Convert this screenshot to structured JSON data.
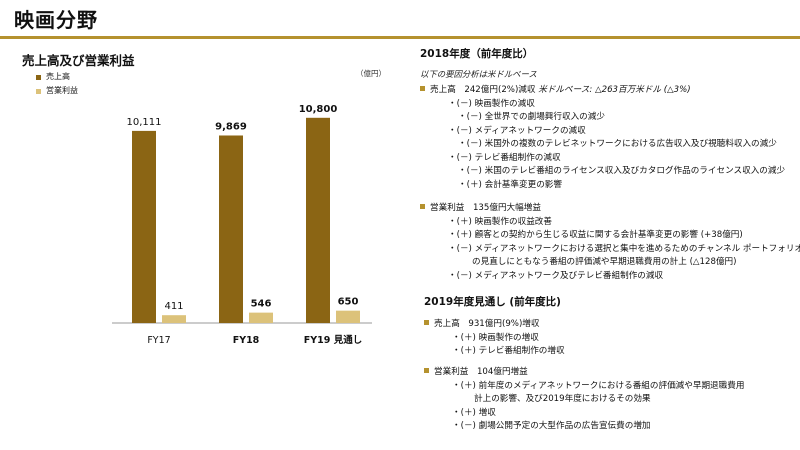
{
  "page": {
    "title": "映画分野",
    "accent_color": "#b5922e"
  },
  "chart_panel": {
    "title": "売上高及び営業利益",
    "unit": "（億円）"
  },
  "chart_data": {
    "type": "bar",
    "categories": [
      "FY17",
      "FY18",
      "FY19 見通し"
    ],
    "series": [
      {
        "name": "売上高",
        "values": [
          10111,
          9869,
          10800
        ],
        "labels": [
          "10,111",
          "9,869",
          "10,800"
        ],
        "color": "#8b6514"
      },
      {
        "name": "営業利益",
        "values": [
          411,
          546,
          650
        ],
        "labels": [
          "411",
          "546",
          "650"
        ],
        "color": "#dcc27a"
      }
    ],
    "ylim": [
      0,
      12000
    ],
    "grid": false,
    "legend": "top-left"
  },
  "right": {
    "fy18": {
      "title": "2018年度（前年度比）",
      "note": "以下の要因分析は米ドルベース",
      "sales": {
        "text": "売上高　242億円(2%)減収",
        "usd": " 米ドルベース: △263百万米ドル (△3%)",
        "items": [
          "・(－) 映画製作の減収",
          "・(－) 全世界での劇場興行収入の減少",
          "・(－) メディアネットワークの減収",
          "・(－) 米国外の複数のテレビネットワークにおける広告収入及び視聴料収入の減少",
          "・(－) テレビ番組制作の減収",
          "・(－) 米国のテレビ番組のライセンス収入及びカタログ作品のライセンス収入の減少",
          "・(＋) 会計基準変更の影響"
        ]
      },
      "profit": {
        "text": "営業利益　135億円大幅増益",
        "items": [
          "・(＋) 映画製作の収益改善",
          "・(＋) 顧客との契約から生じる収益に関する会計基準変更の影響 (+38億円)",
          "・(－) メディアネットワークにおける選択と集中を進めるためのチャンネル ポートフォリオ",
          "の見直しにともなう番組の評価減や早期退職費用の計上 (△128億円)",
          "・(－) メディアネットワーク及びテレビ番組制作の減収"
        ]
      }
    },
    "fy19": {
      "title": "2019年度見通し (前年度比)",
      "sales": {
        "text": "売上高　931億円(9%)増収",
        "items": [
          "・(＋) 映画製作の増収",
          "・(＋) テレビ番組制作の増収"
        ]
      },
      "profit": {
        "text": "営業利益　104億円増益",
        "items": [
          "・(＋) 前年度のメディアネットワークにおける番組の評価減や早期退職費用",
          "計上の影響、及び2019年度におけるその効果",
          "・(＋) 増収",
          "・(－) 劇場公開予定の大型作品の広告宣伝費の増加"
        ]
      }
    }
  }
}
